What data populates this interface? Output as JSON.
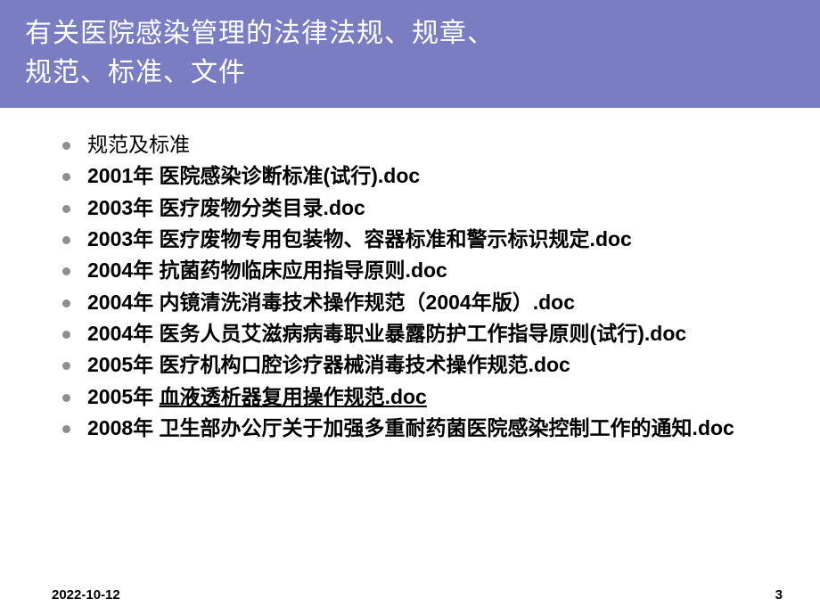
{
  "header": {
    "title_line1": "有关医院感染管理的法律法规、规章、",
    "title_line2": "规范、标准、文件"
  },
  "bullets": [
    {
      "text": "规范及标准",
      "bold": false
    },
    {
      "text": "2001年 医院感染诊断标准(试行).doc",
      "bold": true
    },
    {
      "text": "2003年 医疗废物分类目录.doc",
      "bold": true
    },
    {
      "text": "2003年 医疗废物专用包装物、容器标准和警示标识规定.doc",
      "bold": true
    },
    {
      "text": "2004年 抗菌药物临床应用指导原则.doc",
      "bold": true
    },
    {
      "text": "2004年 内镜清洗消毒技术操作规范（2004年版）.doc",
      "bold": true
    },
    {
      "text": "2004年 医务人员艾滋病病毒职业暴露防护工作指导原则(试行).doc",
      "bold": true
    },
    {
      "text": "2005年 医疗机构口腔诊疗器械消毒技术操作规范.doc",
      "bold": true
    },
    {
      "prefix": "2005年 ",
      "link": "血液透析器复用操作规范.doc",
      "bold": true,
      "has_link": true
    },
    {
      "text": "2008年 卫生部办公厅关于加强多重耐药菌医院感染控制工作的通知.doc",
      "bold": true
    }
  ],
  "footer": {
    "date": "2022-10-12",
    "page": "3"
  },
  "colors": {
    "header_bg": "#7b7dc2",
    "title_text": "#ffffff",
    "body_text": "#000000",
    "bullet_dot": "#8e8e8e",
    "background": "#ffffff"
  },
  "typography": {
    "title_fontsize": 30,
    "body_fontsize": 23,
    "footer_fontsize": 15
  }
}
